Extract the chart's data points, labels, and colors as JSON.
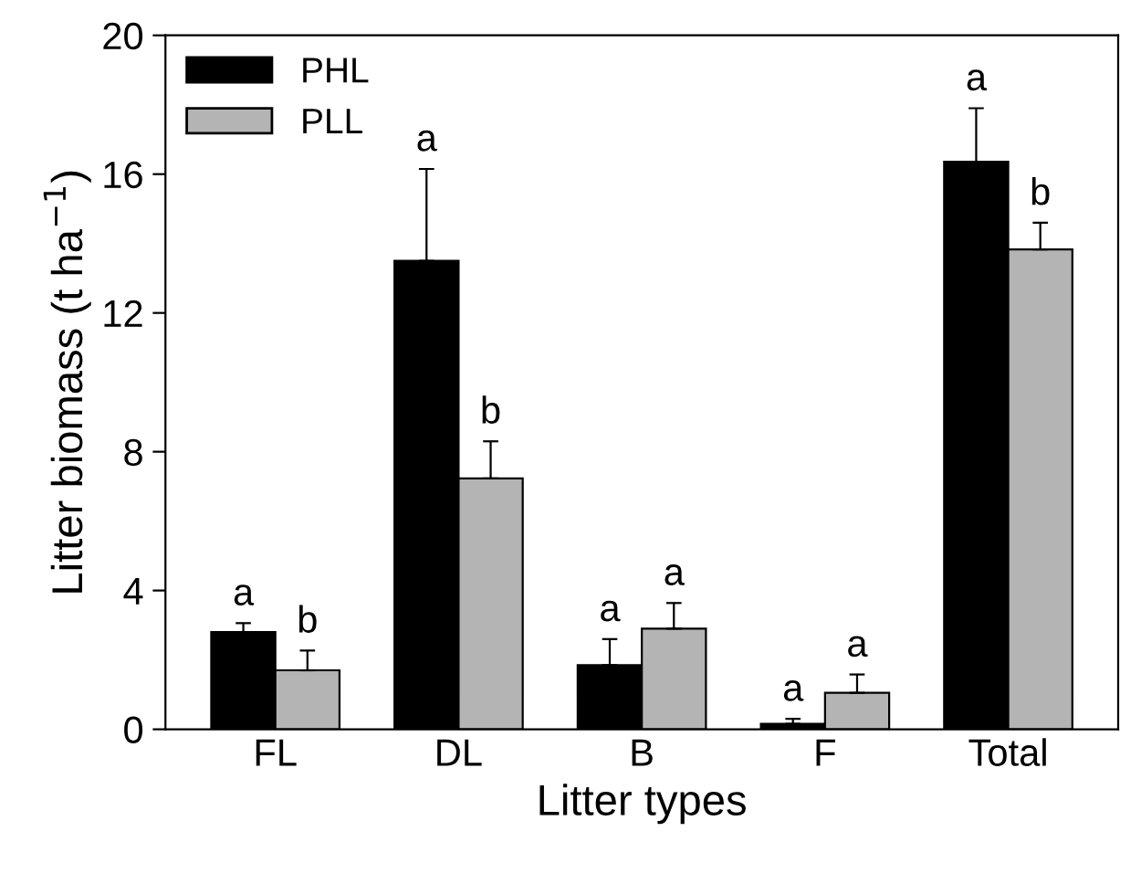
{
  "chart_data": {
    "type": "bar",
    "xlabel": "Litter types",
    "ylabel": "Litter biomass (t ha$^{−1}$)",
    "categories": [
      "FL",
      "DL",
      "B",
      "F",
      "Total"
    ],
    "series": [
      {
        "name": "PHL",
        "color": "#000000",
        "values": [
          2.8,
          13.5,
          1.85,
          0.16,
          16.36
        ],
        "errors": [
          [
            2.8,
            3.06
          ],
          [
            13.5,
            16.15
          ],
          [
            1.85,
            2.6
          ],
          [
            0.16,
            0.3
          ],
          [
            16.36,
            17.9
          ]
        ]
      },
      {
        "name": "PLL",
        "color": "#b4b4b4",
        "values": [
          1.7,
          7.23,
          2.9,
          1.05,
          13.83
        ],
        "errors": [
          [
            1.7,
            2.27
          ],
          [
            7.23,
            8.3
          ],
          [
            2.9,
            3.64
          ],
          [
            1.05,
            1.58
          ],
          [
            13.83,
            14.6
          ]
        ]
      }
    ],
    "ylim": [
      0,
      20
    ],
    "yticks": [
      0,
      4,
      8,
      12,
      16,
      20
    ],
    "grid": false,
    "legend": "top left",
    "annotations": [
      "a",
      "b",
      "a",
      "b",
      "a",
      "a",
      "a",
      "a",
      "a",
      "b"
    ]
  }
}
